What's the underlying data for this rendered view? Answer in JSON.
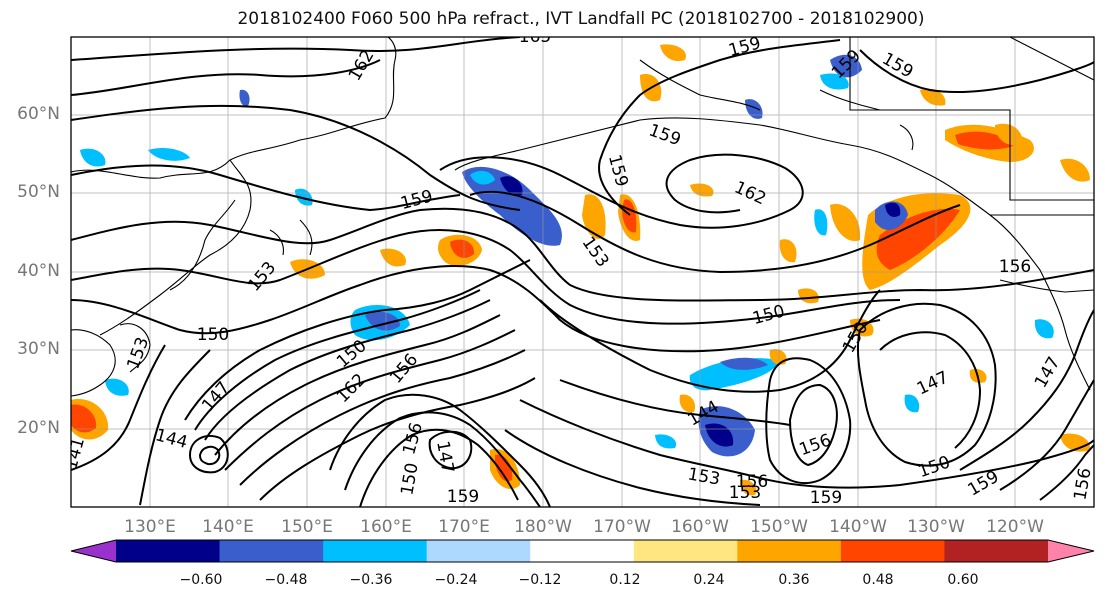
{
  "title": "2018102400 F060 500 hPa refract., IVT Landfall PC (2018102700 - 2018102900)",
  "lat_labels": [
    "60°N",
    "50°N",
    "40°N",
    "30°N",
    "20°N"
  ],
  "lon_labels": [
    "130°E",
    "140°E",
    "150°E",
    "160°E",
    "170°E",
    "180°W",
    "170°W",
    "160°W",
    "150°W",
    "140°W",
    "130°W",
    "120°W"
  ],
  "colorbar": {
    "ticks": [
      "−0.60",
      "−0.48",
      "−0.36",
      "−0.24",
      "−0.12",
      "0.12",
      "0.24",
      "0.36",
      "0.48",
      "0.60"
    ],
    "colors": [
      "#9932cc",
      "#00008b",
      "#3a5fcd",
      "#00bfff",
      "#add8ff",
      "#ffffff",
      "#ffe680",
      "#ffa500",
      "#ff4500",
      "#b22222",
      "#ff82ab"
    ]
  },
  "contour_labels": [
    "165",
    "162",
    "159",
    "159",
    "159",
    "159",
    "159",
    "162",
    "153",
    "153",
    "150",
    "150",
    "147",
    "156",
    "153",
    "150",
    "147",
    "144",
    "141",
    "162",
    "156",
    "156",
    "150",
    "153",
    "156",
    "159",
    "150",
    "159",
    "159",
    "147",
    "147",
    "144",
    "150",
    "153",
    "156",
    "159",
    "156"
  ]
}
